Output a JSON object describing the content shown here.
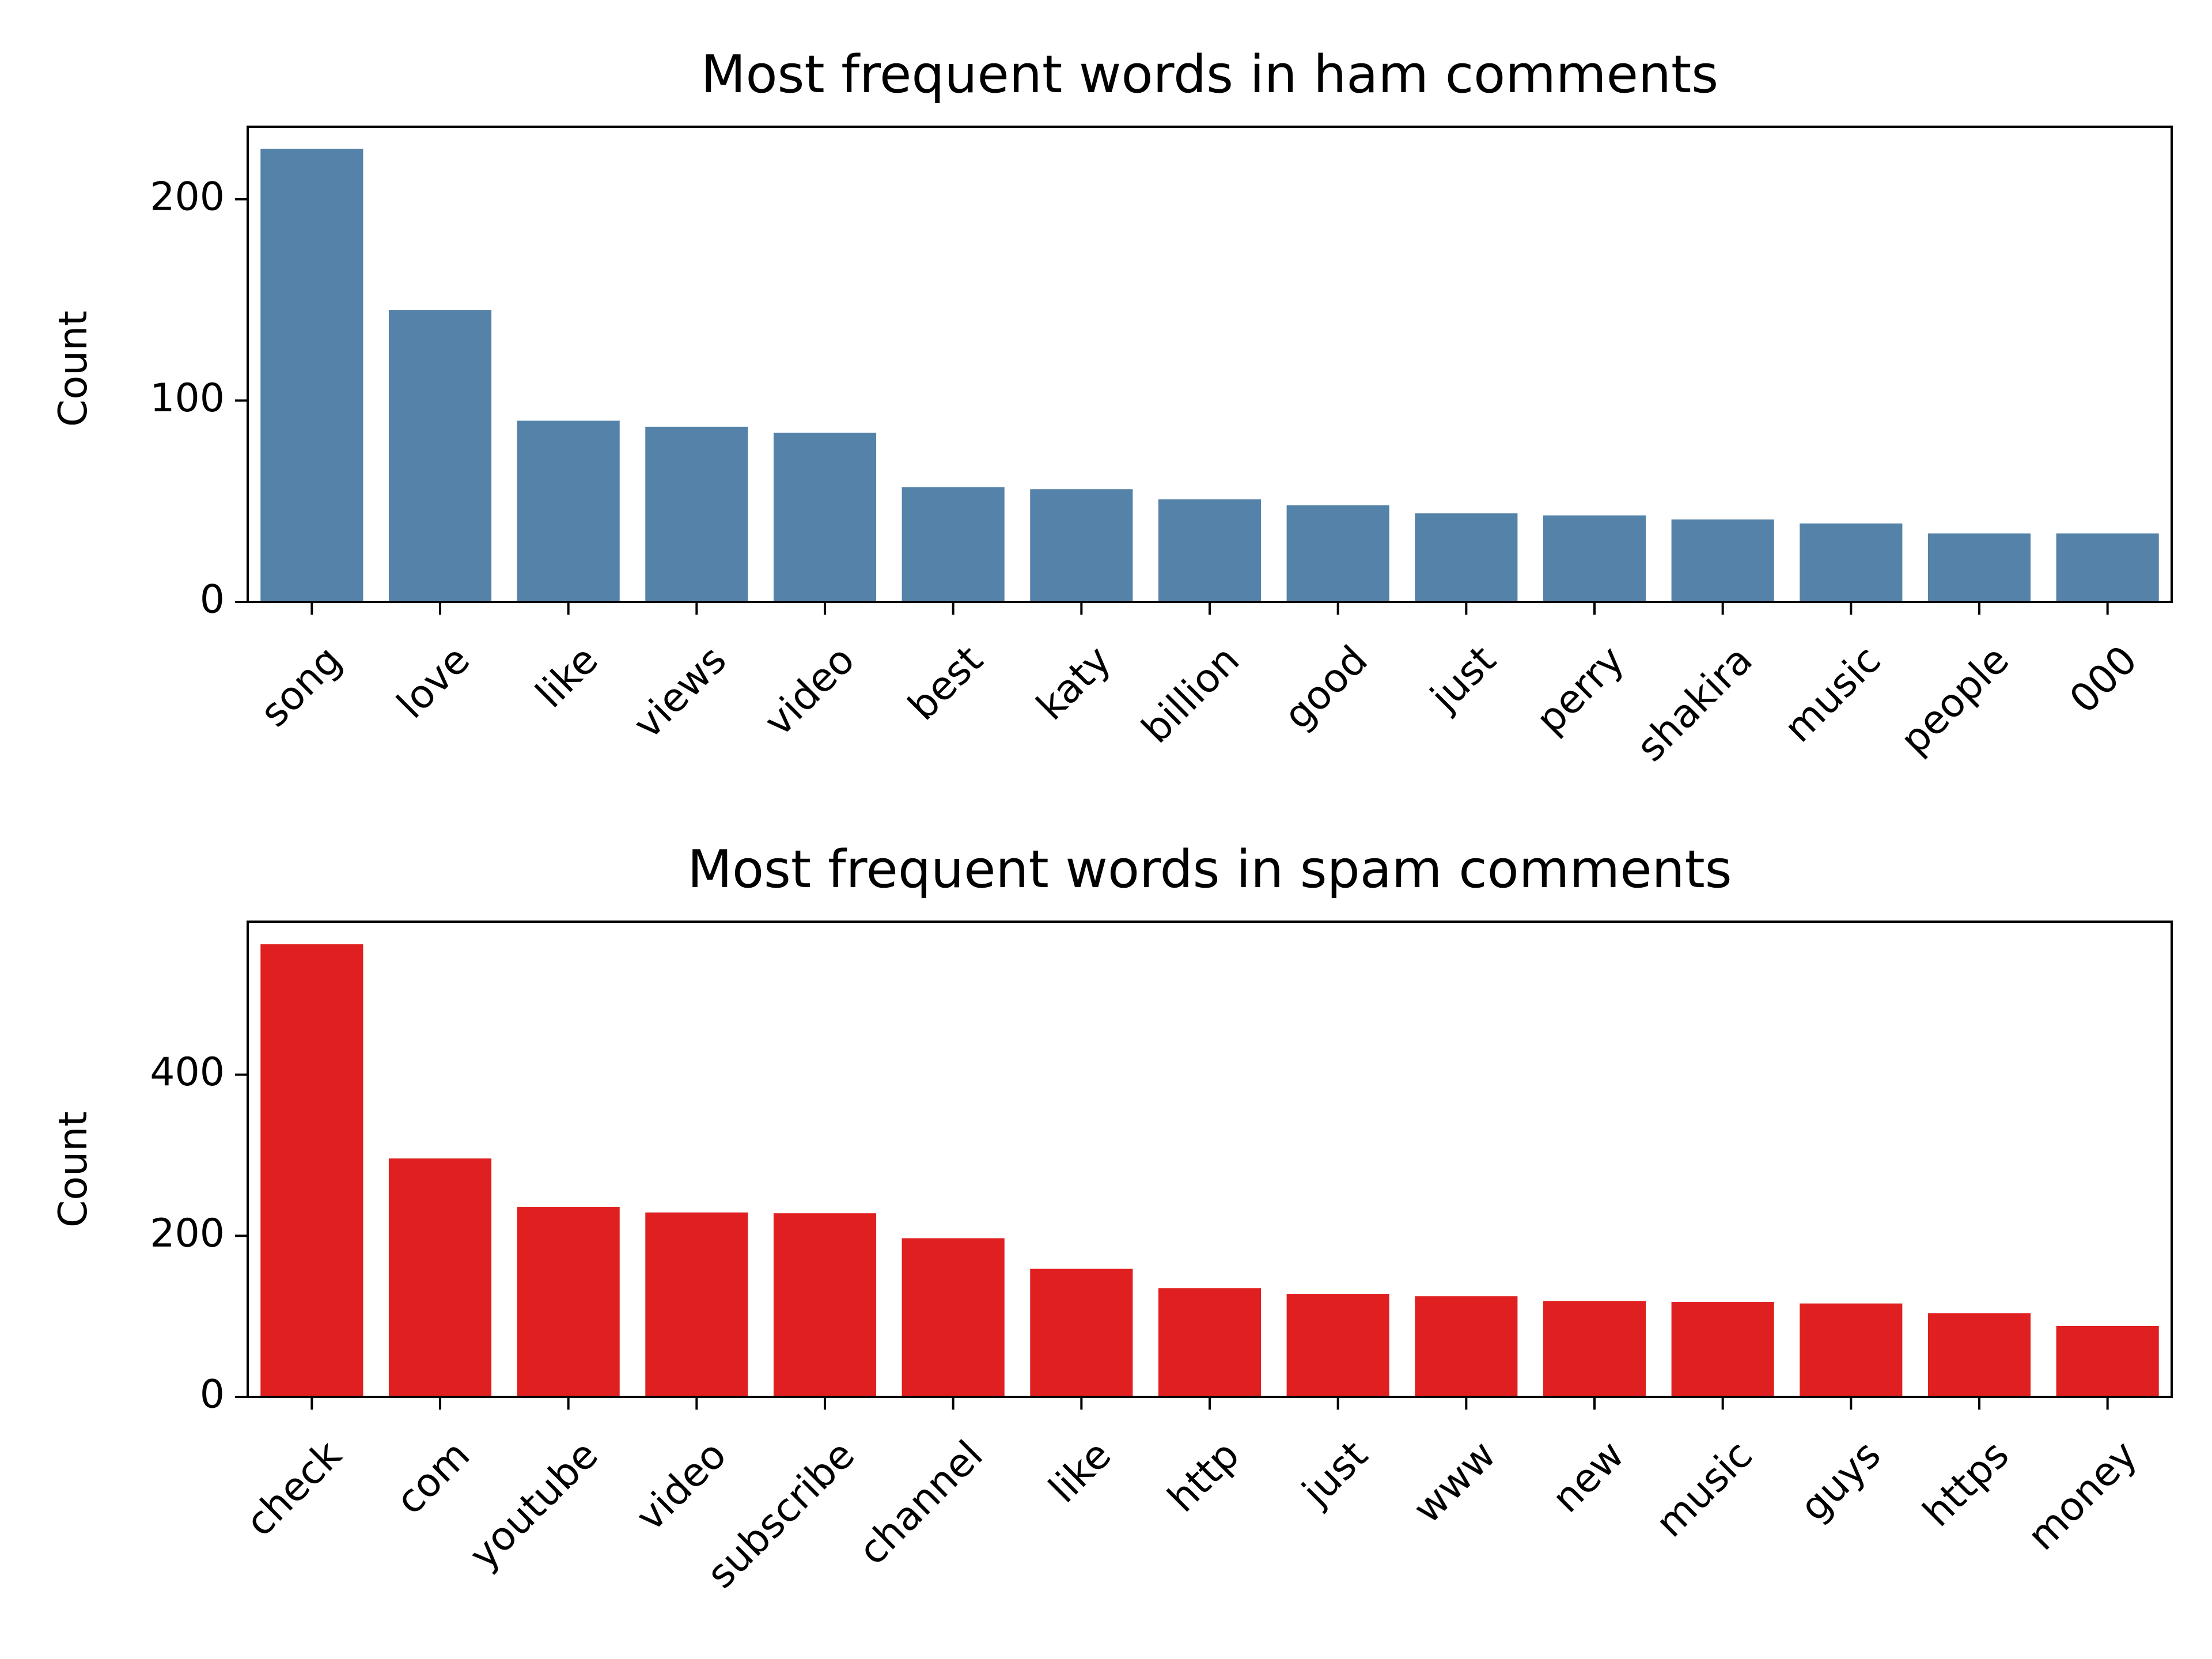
{
  "chart_data": [
    {
      "type": "bar",
      "title": "Most frequent words in ham comments",
      "xlabel": "",
      "ylabel": "Count",
      "ylim": [
        0,
        236
      ],
      "yticks": [
        0,
        100,
        200
      ],
      "color": "#5482a8",
      "grid": false,
      "categories": [
        "song",
        "love",
        "like",
        "views",
        "video",
        "best",
        "katy",
        "billion",
        "good",
        "just",
        "perry",
        "shakira",
        "music",
        "people",
        "000"
      ],
      "values": [
        225,
        145,
        90,
        87,
        84,
        57,
        56,
        51,
        48,
        44,
        43,
        41,
        39,
        34,
        34
      ]
    },
    {
      "type": "bar",
      "title": "Most frequent words in spam comments",
      "xlabel": "",
      "ylabel": "Count",
      "ylim": [
        0,
        590
      ],
      "yticks": [
        0,
        200,
        400
      ],
      "color": "#e02020",
      "grid": false,
      "categories": [
        "check",
        "com",
        "youtube",
        "video",
        "subscribe",
        "channel",
        "like",
        "http",
        "just",
        "www",
        "new",
        "music",
        "guys",
        "https",
        "money"
      ],
      "values": [
        562,
        296,
        236,
        229,
        228,
        197,
        159,
        135,
        128,
        125,
        119,
        118,
        116,
        104,
        88
      ]
    }
  ]
}
